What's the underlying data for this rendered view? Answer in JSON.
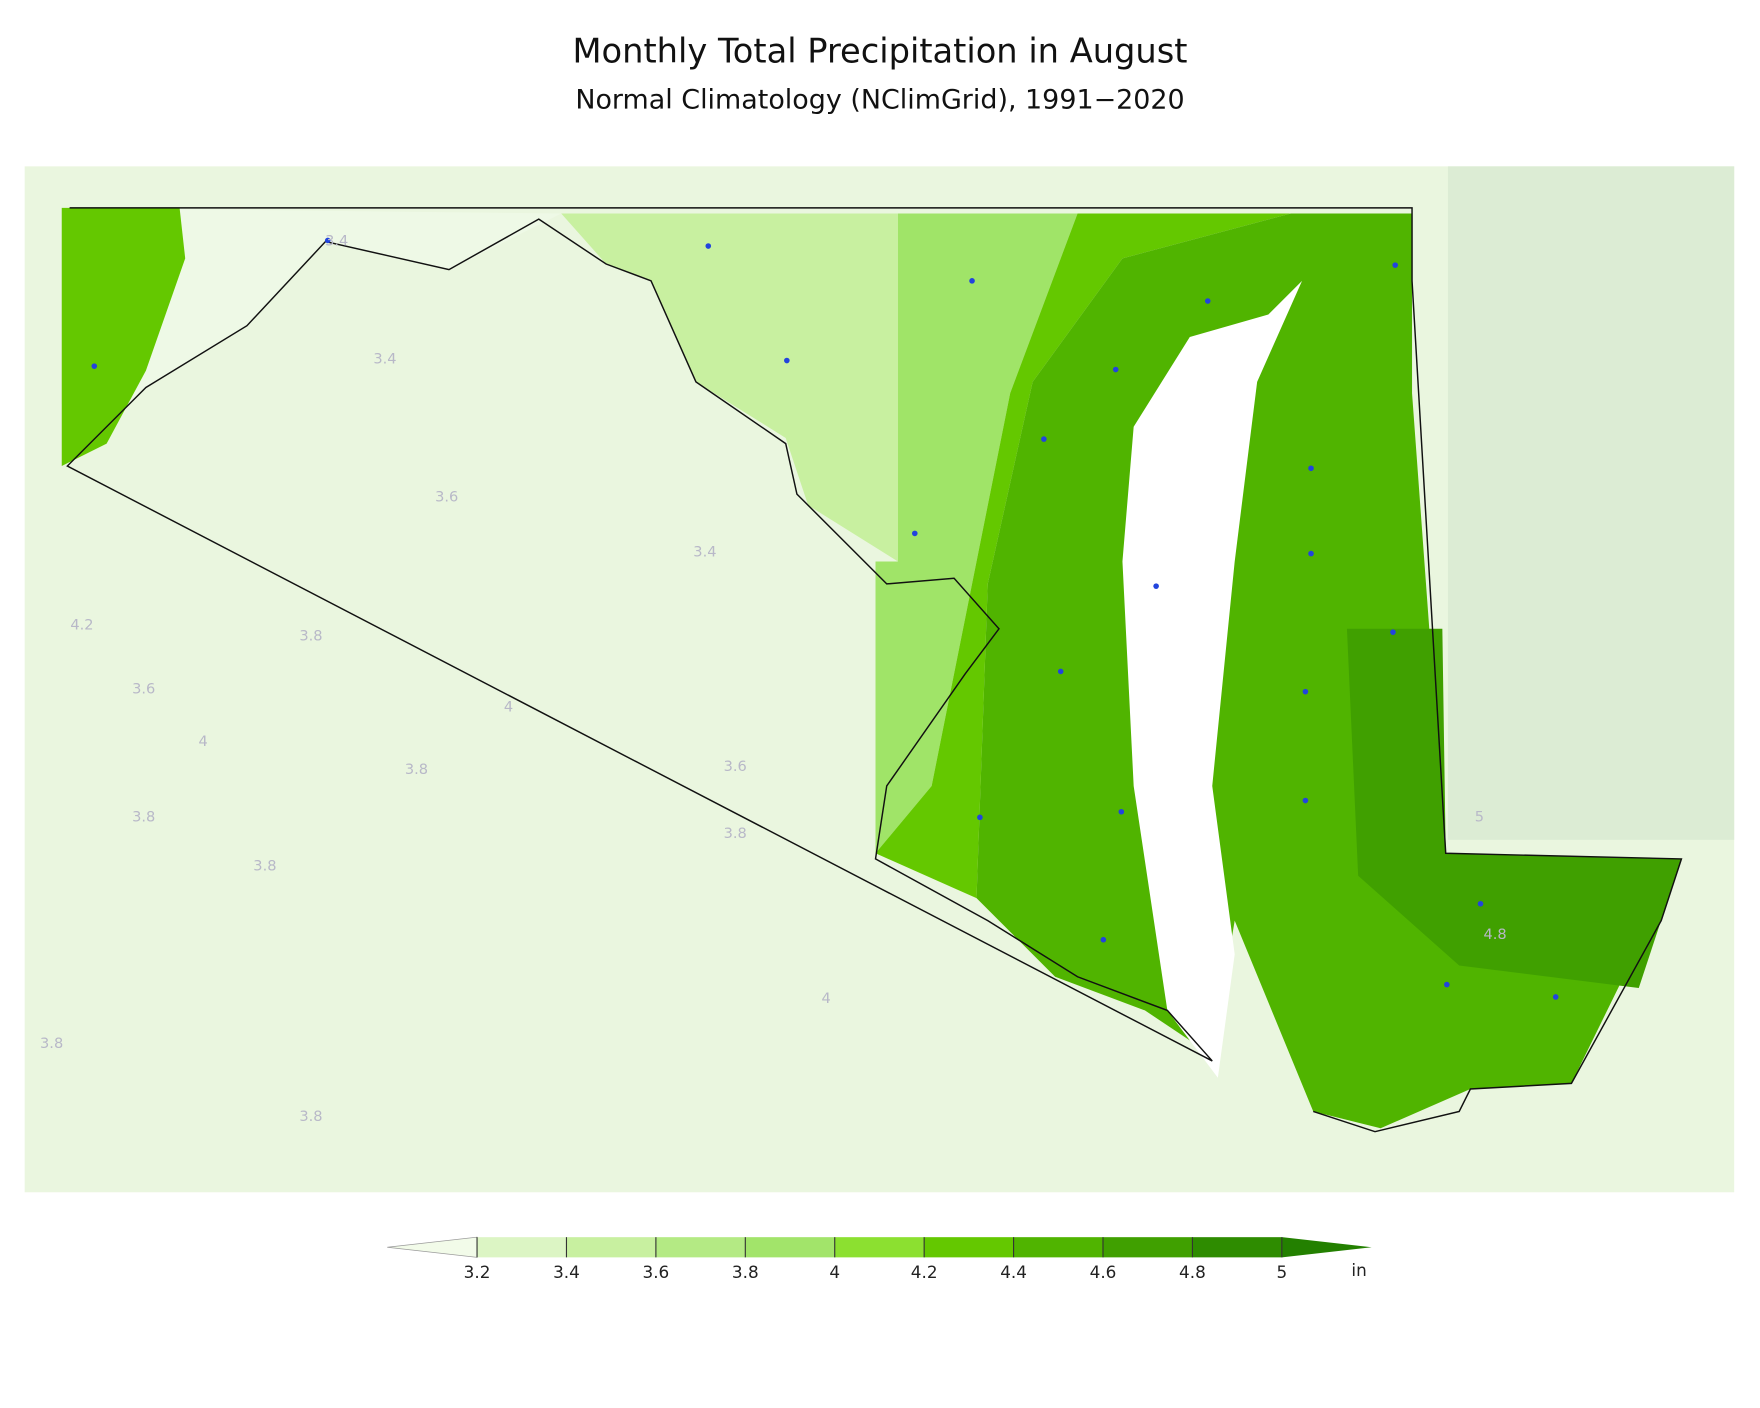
{
  "title": "Monthly Total Precipitation in August",
  "subtitle": "Normal Climatology (NClimGrid), 1991−2020",
  "colorbar": {
    "ticks": [
      3.2,
      3.4,
      3.6,
      3.8,
      4,
      4.2,
      4.4,
      4.6,
      4.8,
      5
    ],
    "colors": [
      "#f2fbe9",
      "#dcf5c4",
      "#c8f0a0",
      "#b4ea84",
      "#a2e46a",
      "#8ce030",
      "#64c800",
      "#50b400",
      "#40a000",
      "#2e8c00",
      "#238000"
    ],
    "unit": "in"
  },
  "contour_labels": [
    3.4,
    3.4,
    3.6,
    3.4,
    4.2,
    3.8,
    3.6,
    4,
    4,
    3.8,
    3.6,
    3.8,
    3.8,
    3.8,
    4,
    3.8,
    3.8,
    5,
    4.8
  ]
}
